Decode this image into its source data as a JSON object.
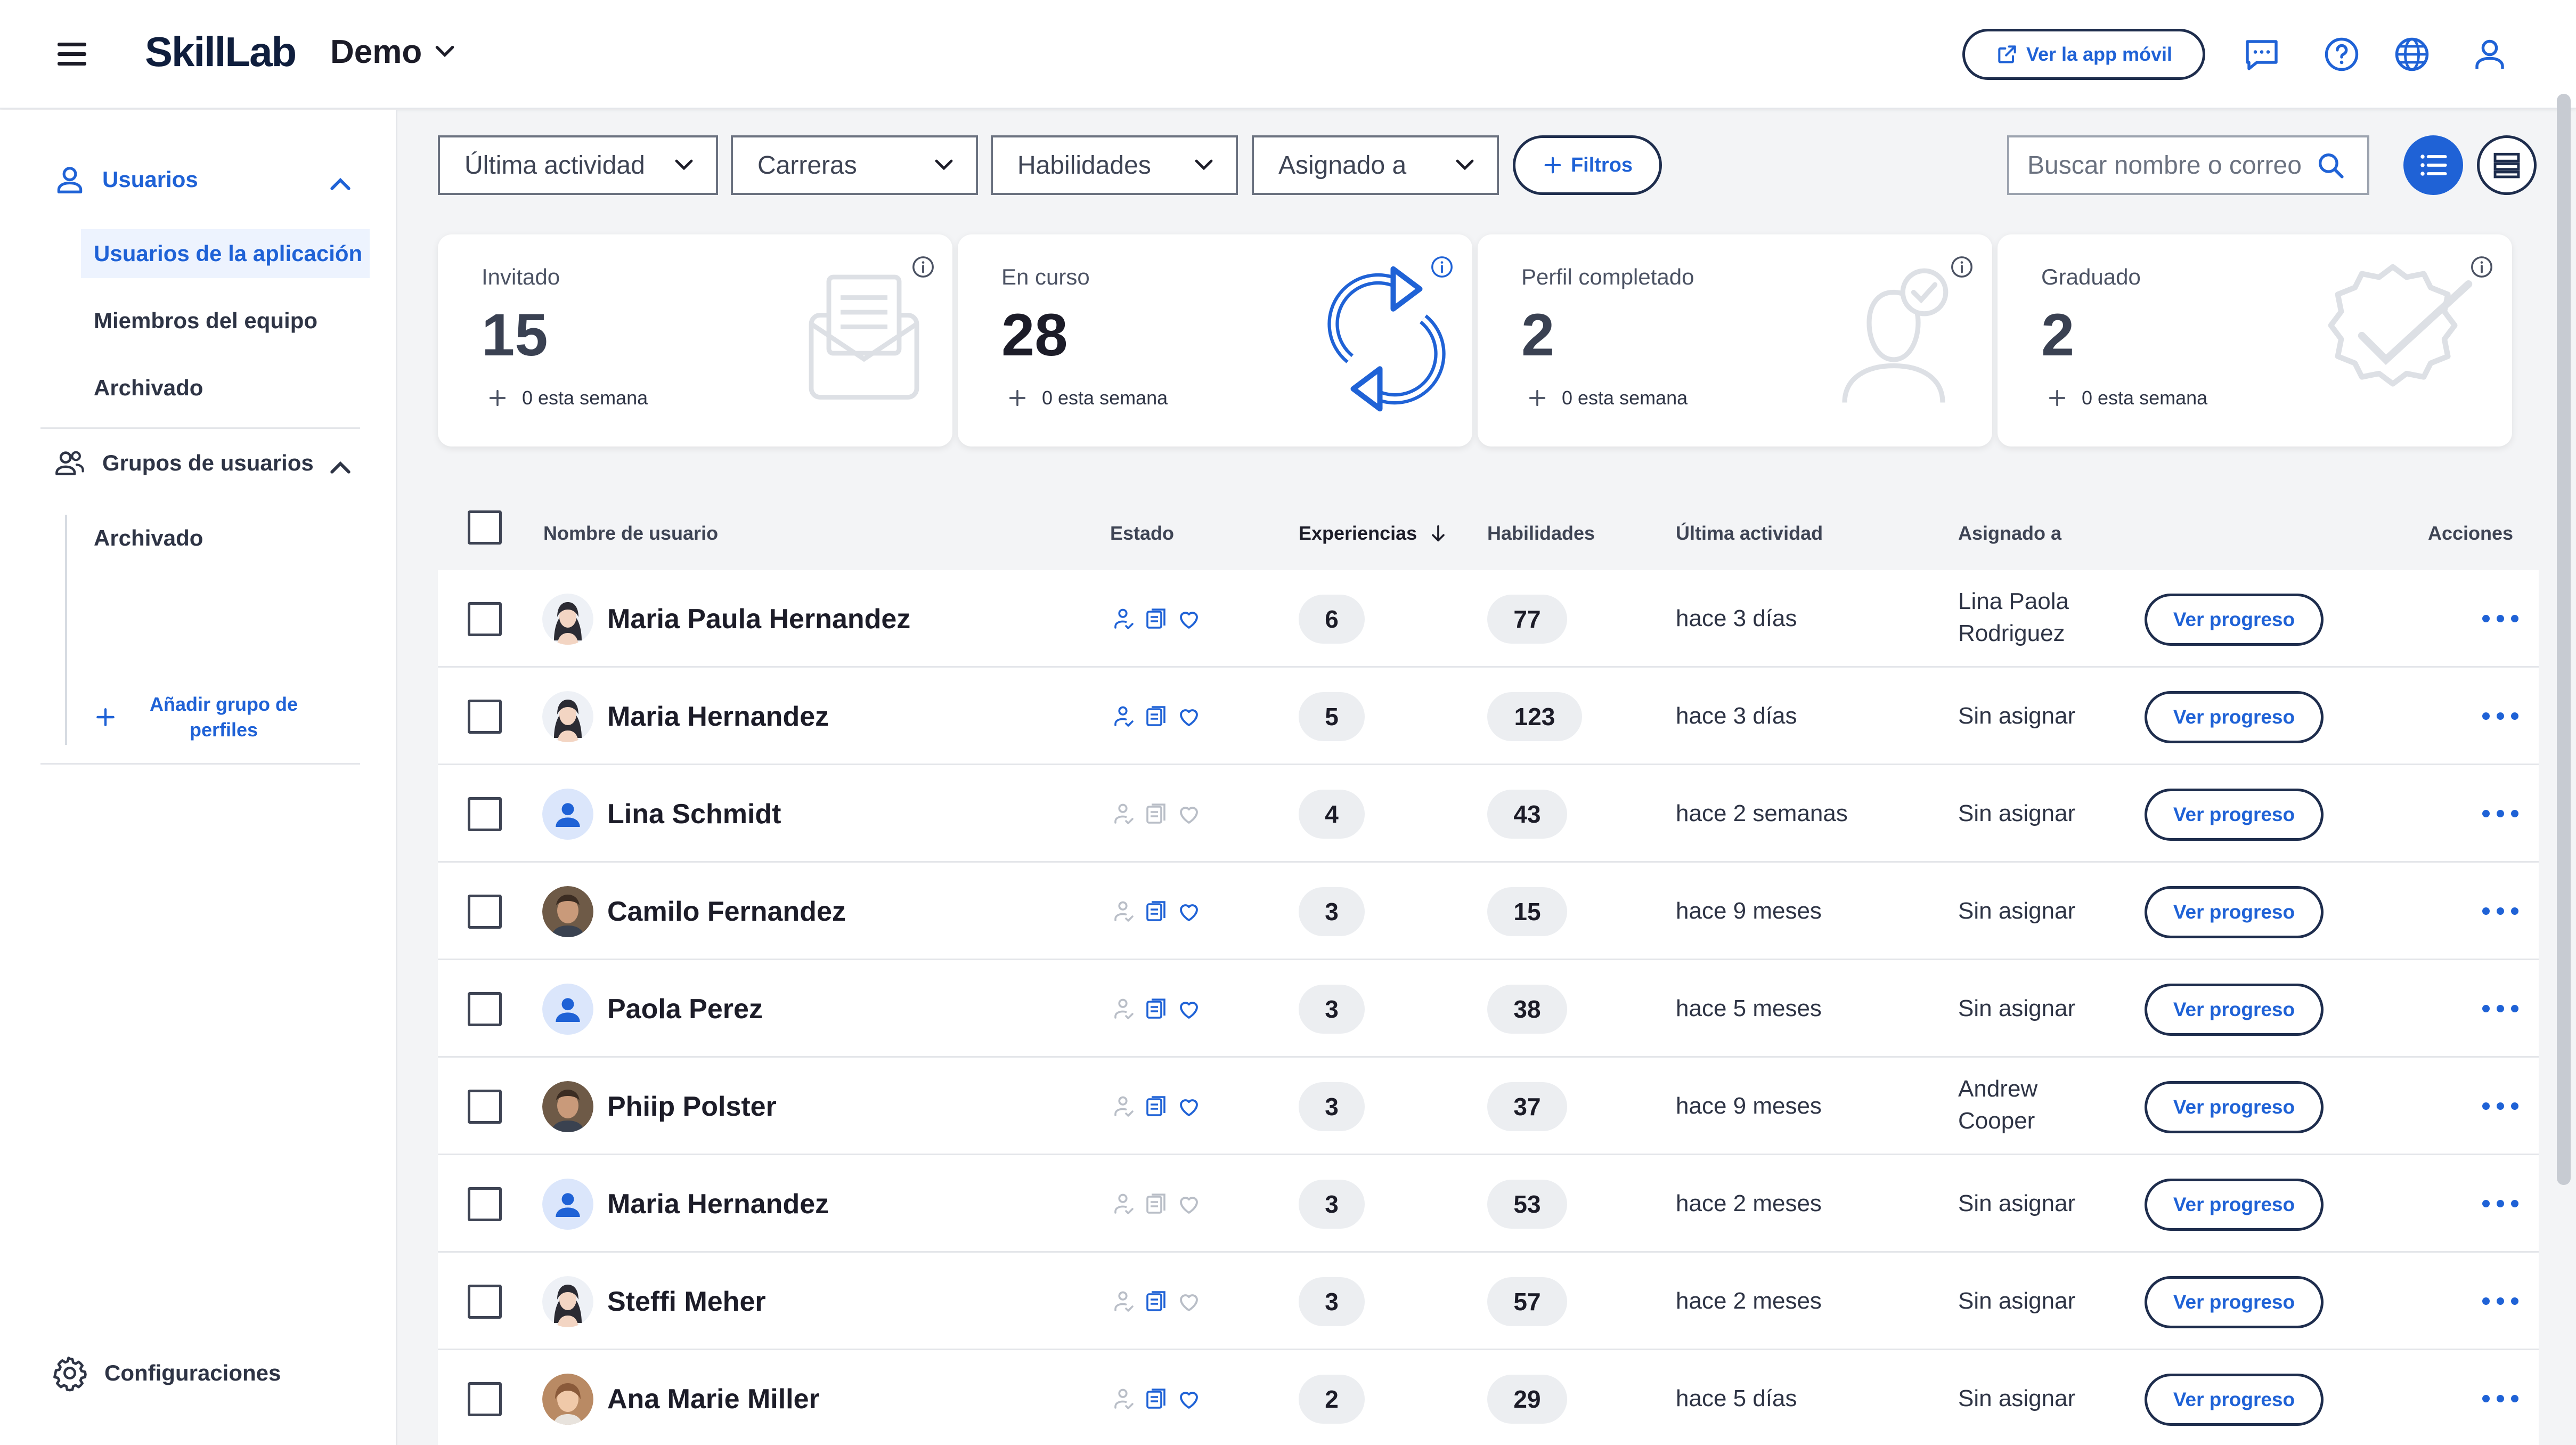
{
  "header": {
    "brand": "SkillLab",
    "org": "Demo",
    "app_button": "Ver la app móvil"
  },
  "sidebar": {
    "users_section": "Usuarios",
    "users_items": [
      "Usuarios de la aplicación",
      "Miembros del equipo",
      "Archivado"
    ],
    "groups_section": "Grupos de usuarios",
    "groups_items": [
      "Archivado"
    ],
    "add_group": "Añadir grupo de perfiles",
    "settings": "Configuraciones"
  },
  "filters": {
    "f1": "Última actividad",
    "f2": "Carreras",
    "f3": "Habilidades",
    "f4": "Asignado a",
    "more": "Filtros",
    "search_placeholder": "Buscar nombre o correo"
  },
  "stats": [
    {
      "label": "Invitado",
      "value": "15",
      "week": "0 esta semana"
    },
    {
      "label": "En curso",
      "value": "28",
      "week": "0 esta semana"
    },
    {
      "label": "Perfil completado",
      "value": "2",
      "week": "0 esta semana"
    },
    {
      "label": "Graduado",
      "value": "2",
      "week": "0 esta semana"
    }
  ],
  "table": {
    "columns": {
      "name": "Nombre de usuario",
      "status": "Estado",
      "experiences": "Experiencias",
      "skills": "Habilidades",
      "last_activity": "Última actividad",
      "assigned": "Asignado a",
      "actions": "Acciones"
    },
    "progress_label": "Ver progreso",
    "rows": [
      {
        "name": "Maria Paula Hernandez",
        "avatar": "woman-avatar",
        "status": [
          true,
          true,
          true
        ],
        "experiences": "6",
        "skills": "77",
        "last_activity": "hace 3 días",
        "assigned_1": "Lina Paola",
        "assigned_2": "Rodriguez"
      },
      {
        "name": "Maria Hernandez",
        "avatar": "woman-avatar",
        "status": [
          true,
          true,
          true
        ],
        "experiences": "5",
        "skills": "123",
        "last_activity": "hace 3 días",
        "assigned_1": "Sin asignar",
        "assigned_2": ""
      },
      {
        "name": "Lina Schmidt",
        "avatar": "user-icon",
        "status": [
          false,
          false,
          false
        ],
        "experiences": "4",
        "skills": "43",
        "last_activity": "hace 2 semanas",
        "assigned_1": "Sin asignar",
        "assigned_2": ""
      },
      {
        "name": "Camilo Fernandez",
        "avatar": "photo-man",
        "status": [
          false,
          true,
          true
        ],
        "experiences": "3",
        "skills": "15",
        "last_activity": "hace 9 meses",
        "assigned_1": "Sin asignar",
        "assigned_2": ""
      },
      {
        "name": "Paola Perez",
        "avatar": "user-icon",
        "status": [
          false,
          true,
          true
        ],
        "experiences": "3",
        "skills": "38",
        "last_activity": "hace 5 meses",
        "assigned_1": "Sin asignar",
        "assigned_2": ""
      },
      {
        "name": "Phiip Polster",
        "avatar": "photo-man",
        "status": [
          false,
          true,
          true
        ],
        "experiences": "3",
        "skills": "37",
        "last_activity": "hace 9 meses",
        "assigned_1": "Andrew",
        "assigned_2": "Cooper"
      },
      {
        "name": "Maria Hernandez",
        "avatar": "user-icon",
        "status": [
          false,
          false,
          false
        ],
        "experiences": "3",
        "skills": "53",
        "last_activity": "hace 2 meses",
        "assigned_1": "Sin asignar",
        "assigned_2": ""
      },
      {
        "name": "Steffi Meher",
        "avatar": "woman-avatar",
        "status": [
          false,
          true,
          false
        ],
        "experiences": "3",
        "skills": "57",
        "last_activity": "hace 2 meses",
        "assigned_1": "Sin asignar",
        "assigned_2": ""
      },
      {
        "name": "Ana Marie Miller",
        "avatar": "photo-woman",
        "status": [
          false,
          true,
          true
        ],
        "experiences": "2",
        "skills": "29",
        "last_activity": "hace 5 días",
        "assigned_1": "Sin asignar",
        "assigned_2": ""
      }
    ]
  },
  "colors": {
    "accent": "#1f62d6",
    "navy": "#1e2d4d",
    "muted_icon": "#b9bec7"
  }
}
